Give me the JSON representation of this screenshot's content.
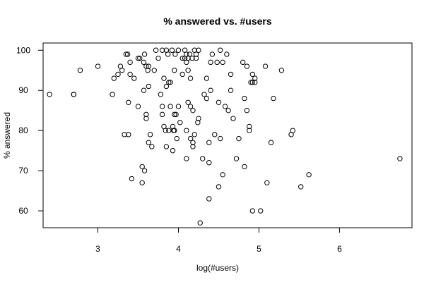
{
  "chart_data": {
    "type": "scatter",
    "title": "% answered vs. #users",
    "xlabel": "log(#users)",
    "ylabel": "% answered",
    "xlim": [
      2.32,
      6.9
    ],
    "ylim": [
      55.8,
      101.8
    ],
    "xticks": [
      3,
      4,
      5,
      6
    ],
    "yticks": [
      60,
      70,
      80,
      90,
      100
    ],
    "grid": false,
    "legend": "none",
    "marker": "open-circle",
    "points": [
      [
        2.4,
        89
      ],
      [
        2.7,
        89
      ],
      [
        2.7,
        89
      ],
      [
        2.78,
        95
      ],
      [
        3.0,
        96
      ],
      [
        3.18,
        89
      ],
      [
        3.2,
        93
      ],
      [
        3.25,
        94
      ],
      [
        3.28,
        96
      ],
      [
        3.3,
        95
      ],
      [
        3.33,
        79
      ],
      [
        3.35,
        99
      ],
      [
        3.37,
        99
      ],
      [
        3.38,
        87
      ],
      [
        3.38,
        79
      ],
      [
        3.4,
        97
      ],
      [
        3.4,
        94
      ],
      [
        3.42,
        68
      ],
      [
        3.45,
        93
      ],
      [
        3.5,
        98
      ],
      [
        3.5,
        86
      ],
      [
        3.52,
        98
      ],
      [
        3.55,
        67
      ],
      [
        3.55,
        71
      ],
      [
        3.57,
        90
      ],
      [
        3.57,
        97
      ],
      [
        3.58,
        70
      ],
      [
        3.58,
        99
      ],
      [
        3.6,
        84
      ],
      [
        3.6,
        96
      ],
      [
        3.6,
        83
      ],
      [
        3.62,
        95
      ],
      [
        3.63,
        96
      ],
      [
        3.63,
        91
      ],
      [
        3.63,
        77
      ],
      [
        3.65,
        79
      ],
      [
        3.67,
        76
      ],
      [
        3.7,
        95
      ],
      [
        3.72,
        100
      ],
      [
        3.75,
        98
      ],
      [
        3.78,
        89
      ],
      [
        3.8,
        86
      ],
      [
        3.8,
        84
      ],
      [
        3.8,
        100
      ],
      [
        3.82,
        93
      ],
      [
        3.82,
        81
      ],
      [
        3.84,
        80
      ],
      [
        3.85,
        100
      ],
      [
        3.85,
        76
      ],
      [
        3.85,
        91
      ],
      [
        3.87,
        99
      ],
      [
        3.88,
        92
      ],
      [
        3.88,
        80
      ],
      [
        3.9,
        92
      ],
      [
        3.9,
        86
      ],
      [
        3.92,
        100
      ],
      [
        3.93,
        81
      ],
      [
        3.93,
        75
      ],
      [
        3.94,
        80
      ],
      [
        3.95,
        80
      ],
      [
        3.95,
        84
      ],
      [
        3.95,
        95
      ],
      [
        3.96,
        99
      ],
      [
        3.97,
        84
      ],
      [
        3.98,
        78
      ],
      [
        4.0,
        100
      ],
      [
        4.0,
        86
      ],
      [
        4.02,
        82
      ],
      [
        4.05,
        94
      ],
      [
        4.05,
        98
      ],
      [
        4.08,
        100
      ],
      [
        4.08,
        98
      ],
      [
        4.1,
        73
      ],
      [
        4.1,
        99
      ],
      [
        4.1,
        97
      ],
      [
        4.1,
        80
      ],
      [
        4.12,
        95
      ],
      [
        4.12,
        98
      ],
      [
        4.12,
        87
      ],
      [
        4.14,
        99
      ],
      [
        4.15,
        78
      ],
      [
        4.15,
        86
      ],
      [
        4.15,
        93
      ],
      [
        4.17,
        98
      ],
      [
        4.18,
        85
      ],
      [
        4.18,
        76
      ],
      [
        4.18,
        77
      ],
      [
        4.2,
        79
      ],
      [
        4.2,
        100
      ],
      [
        4.22,
        99
      ],
      [
        4.22,
        98
      ],
      [
        4.24,
        82
      ],
      [
        4.25,
        83
      ],
      [
        4.25,
        100
      ],
      [
        4.27,
        57
      ],
      [
        4.3,
        73
      ],
      [
        4.32,
        89
      ],
      [
        4.35,
        88
      ],
      [
        4.35,
        93
      ],
      [
        4.38,
        63
      ],
      [
        4.38,
        72
      ],
      [
        4.38,
        77
      ],
      [
        4.4,
        90
      ],
      [
        4.4,
        97
      ],
      [
        4.42,
        99
      ],
      [
        4.45,
        79
      ],
      [
        4.48,
        97
      ],
      [
        4.5,
        87
      ],
      [
        4.5,
        66
      ],
      [
        4.52,
        100
      ],
      [
        4.52,
        78
      ],
      [
        4.55,
        69
      ],
      [
        4.55,
        97
      ],
      [
        4.58,
        86
      ],
      [
        4.6,
        99
      ],
      [
        4.62,
        85
      ],
      [
        4.65,
        94
      ],
      [
        4.65,
        90
      ],
      [
        4.68,
        83
      ],
      [
        4.72,
        73
      ],
      [
        4.75,
        78
      ],
      [
        4.8,
        97
      ],
      [
        4.82,
        88
      ],
      [
        4.82,
        71
      ],
      [
        4.85,
        85
      ],
      [
        4.85,
        96
      ],
      [
        4.88,
        81
      ],
      [
        4.88,
        80
      ],
      [
        4.9,
        92
      ],
      [
        4.92,
        94
      ],
      [
        4.92,
        92
      ],
      [
        4.92,
        60
      ],
      [
        4.95,
        93
      ],
      [
        4.95,
        92
      ],
      [
        5.02,
        60
      ],
      [
        5.08,
        96
      ],
      [
        5.1,
        67
      ],
      [
        5.15,
        77
      ],
      [
        5.18,
        88
      ],
      [
        5.28,
        95
      ],
      [
        5.4,
        79
      ],
      [
        5.42,
        80
      ],
      [
        5.52,
        66
      ],
      [
        5.62,
        69
      ],
      [
        6.75,
        73
      ]
    ]
  }
}
